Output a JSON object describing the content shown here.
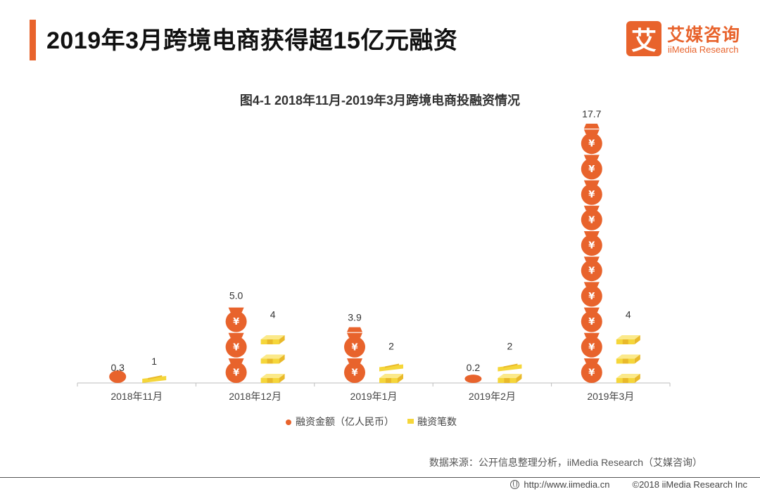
{
  "header": {
    "title": "2019年3月跨境电商获得超15亿元融资",
    "accent_color": "#e8632c"
  },
  "logo": {
    "mark": "艾",
    "name_cn": "艾媒咨询",
    "name_en": "iiMedia Research"
  },
  "chart_data": {
    "type": "bar",
    "title": "图4-1 2018年11月-2019年3月跨境电商投融资情况",
    "categories": [
      "2018年11月",
      "2018年12月",
      "2019年1月",
      "2019年2月",
      "2019年3月"
    ],
    "series": [
      {
        "name": "融资金额（亿人民币）",
        "values": [
          0.3,
          5.0,
          3.9,
          0.2,
          17.7
        ],
        "value_labels": [
          "0.3",
          "5.0",
          "3.9",
          "0.2",
          "17.7"
        ],
        "color": "#e8632c",
        "icon": "money-bag-icon"
      },
      {
        "name": "融资笔数",
        "values": [
          1,
          4,
          2,
          2,
          4
        ],
        "value_labels": [
          "1",
          "4",
          "2",
          "2",
          "4"
        ],
        "color": "#f5d63a",
        "icon": "cash-stack-icon"
      }
    ],
    "legend_position": "bottom",
    "grid": false
  },
  "footer": {
    "source": "数据来源：公开信息整理分析，iiMedia Research（艾媒咨询）",
    "url": "http://www.iimedia.cn",
    "copyright": "©2018  iiMedia Research  Inc"
  }
}
